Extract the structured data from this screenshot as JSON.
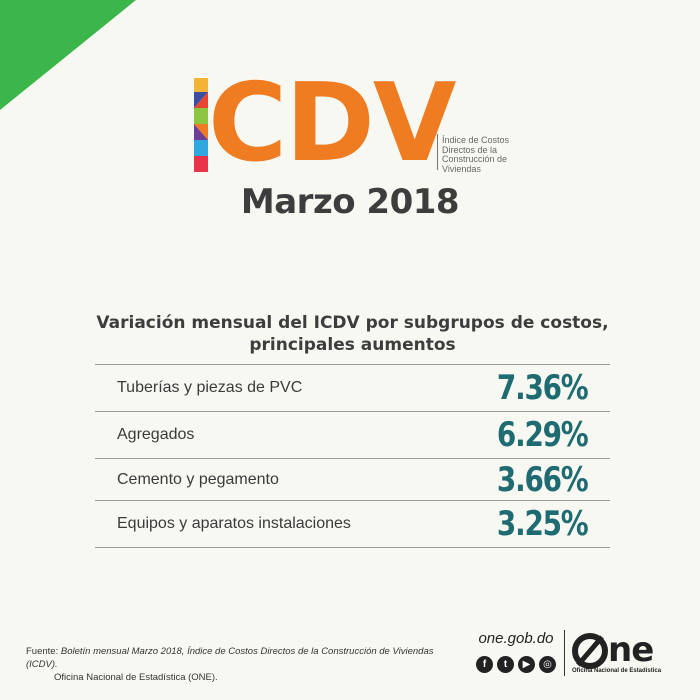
{
  "colors": {
    "background": "#f8f8f3",
    "corner_green": "#3cb64a",
    "logo_orange": "#f07c22",
    "value_teal": "#1e6b72",
    "divider": "#9a9a9a"
  },
  "logo": {
    "letters": "CDV",
    "description": "Índice de Costos Directos de la Construcción de Viviendas"
  },
  "period": "Marzo 2018",
  "table": {
    "heading_line1": "Variación mensual del ICDV por subgrupos de costos,",
    "heading_line2": "principales aumentos",
    "rows": [
      {
        "name": "Tuberías y piezas de PVC",
        "value": "7.36%"
      },
      {
        "name": "Agregados",
        "value": "6.29%"
      },
      {
        "name": "Cemento y pegamento",
        "value": "3.66%"
      },
      {
        "name": "Equipos y aparatos instalaciones",
        "value": "3.25%"
      }
    ]
  },
  "footer": {
    "source_label": "Fuente:",
    "source_ref": "Boletín mensual Marzo 2018, Índice de Costos Directos de la Construcción de Viviendas (ICDV).",
    "source_org": "Oficina Nacional de Estadística (ONE).",
    "website": "one.gob.do",
    "socials": [
      {
        "icon": "facebook-icon",
        "glyph": "f"
      },
      {
        "icon": "twitter-icon",
        "glyph": "t"
      },
      {
        "icon": "youtube-icon",
        "glyph": "▶"
      },
      {
        "icon": "instagram-icon",
        "glyph": "◎"
      }
    ],
    "org_logo_word": "ne",
    "org_logo_sub": "Oficina Nacional de Estadística"
  }
}
